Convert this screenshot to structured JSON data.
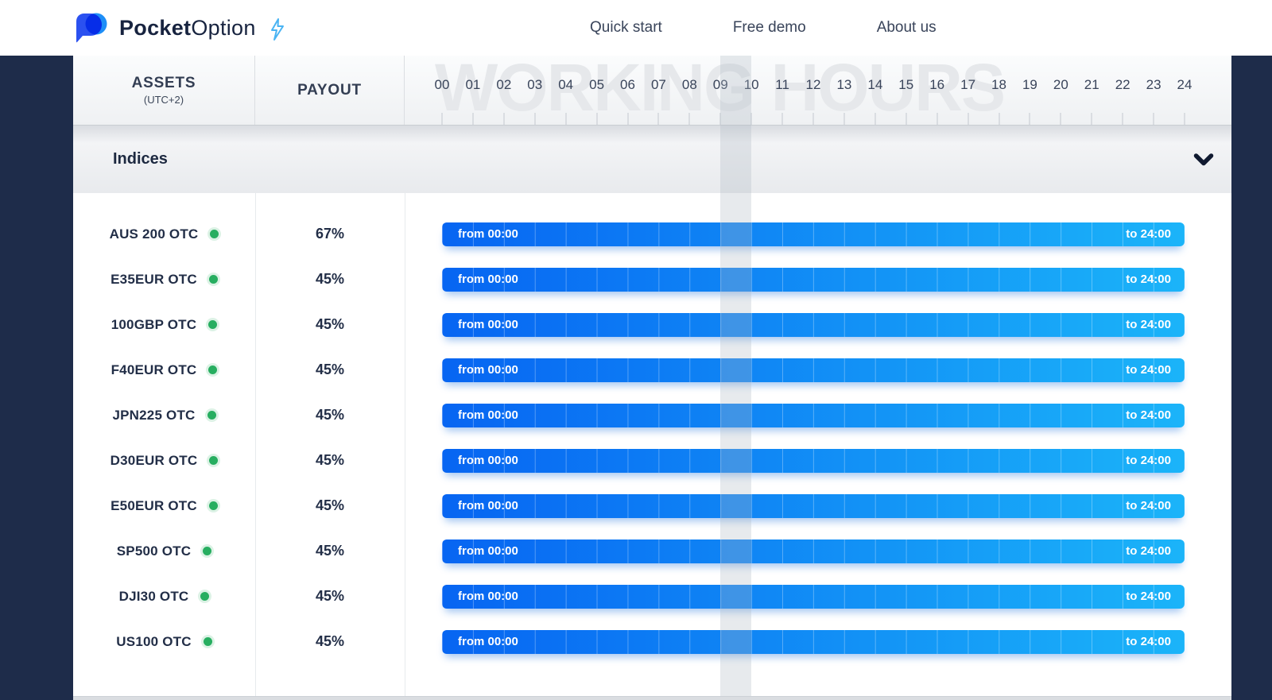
{
  "brand": {
    "logo_text_bold": "Pocket",
    "logo_text_light": "Option"
  },
  "nav": {
    "items": [
      {
        "label": "Quick start"
      },
      {
        "label": "Free demo"
      },
      {
        "label": "About us"
      }
    ]
  },
  "schedule": {
    "assets_header": "ASSETS",
    "assets_timezone": "(UTC+2)",
    "payout_header": "PAYOUT",
    "watermark": "WORKING HOURS",
    "hours": [
      "00",
      "01",
      "02",
      "03",
      "04",
      "05",
      "06",
      "07",
      "08",
      "09",
      "10",
      "11",
      "12",
      "13",
      "14",
      "15",
      "16",
      "17",
      "18",
      "19",
      "20",
      "21",
      "22",
      "23",
      "24"
    ],
    "highlight_band": {
      "from_hour": 9,
      "to_hour": 10
    },
    "section": {
      "title": "Indices",
      "expanded": true
    },
    "rows": [
      {
        "asset": "AUS 200 OTC",
        "status": "active",
        "payout": "67%",
        "from_hour": 0,
        "to_hour": 24,
        "from_label": "from 00:00",
        "to_label": "to 24:00"
      },
      {
        "asset": "E35EUR OTC",
        "status": "active",
        "payout": "45%",
        "from_hour": 0,
        "to_hour": 24,
        "from_label": "from 00:00",
        "to_label": "to 24:00"
      },
      {
        "asset": "100GBP OTC",
        "status": "active",
        "payout": "45%",
        "from_hour": 0,
        "to_hour": 24,
        "from_label": "from 00:00",
        "to_label": "to 24:00"
      },
      {
        "asset": "F40EUR OTC",
        "status": "active",
        "payout": "45%",
        "from_hour": 0,
        "to_hour": 24,
        "from_label": "from 00:00",
        "to_label": "to 24:00"
      },
      {
        "asset": "JPN225 OTC",
        "status": "active",
        "payout": "45%",
        "from_hour": 0,
        "to_hour": 24,
        "from_label": "from 00:00",
        "to_label": "to 24:00"
      },
      {
        "asset": "D30EUR OTC",
        "status": "active",
        "payout": "45%",
        "from_hour": 0,
        "to_hour": 24,
        "from_label": "from 00:00",
        "to_label": "to 24:00"
      },
      {
        "asset": "E50EUR OTC",
        "status": "active",
        "payout": "45%",
        "from_hour": 0,
        "to_hour": 24,
        "from_label": "from 00:00",
        "to_label": "to 24:00"
      },
      {
        "asset": "SP500 OTC",
        "status": "active",
        "payout": "45%",
        "from_hour": 0,
        "to_hour": 24,
        "from_label": "from 00:00",
        "to_label": "to 24:00"
      },
      {
        "asset": "DJI30 OTC",
        "status": "active",
        "payout": "45%",
        "from_hour": 0,
        "to_hour": 24,
        "from_label": "from 00:00",
        "to_label": "to 24:00"
      },
      {
        "asset": "US100 OTC",
        "status": "active",
        "payout": "45%",
        "from_hour": 0,
        "to_hour": 24,
        "from_label": "from 00:00",
        "to_label": "to 24:00"
      }
    ]
  },
  "colors": {
    "page_background": "#1E2C4A",
    "bar_gradient_start": "#0765F2",
    "bar_gradient_end": "#1BB4F9",
    "active_dot": "#27AE60",
    "brand_blue_dark": "#2B51F0",
    "brand_blue_light": "#1E8EF7",
    "bolt_blue": "#4AB4F3"
  }
}
